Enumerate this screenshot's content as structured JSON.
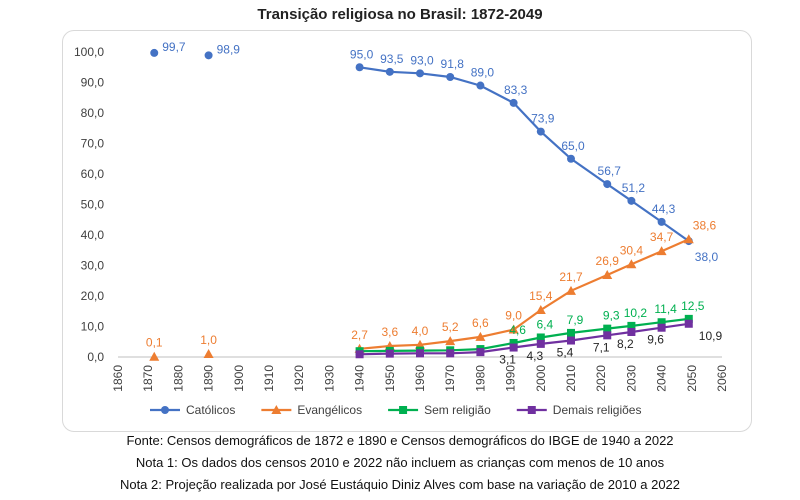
{
  "chart_data": {
    "type": "line",
    "title": "Transição religiosa no Brasil: 1872-2049",
    "xlim": [
      1860,
      2060
    ],
    "ylim": [
      0,
      100
    ],
    "x_ticks": [
      "1860",
      "1870",
      "1880",
      "1890",
      "1900",
      "1910",
      "1920",
      "1930",
      "1940",
      "1950",
      "1960",
      "1970",
      "1980",
      "1990",
      "2000",
      "2010",
      "2020",
      "2030",
      "2040",
      "2050",
      "2060"
    ],
    "y_ticks": [
      "0,0",
      "10,0",
      "20,0",
      "30,0",
      "40,0",
      "50,0",
      "60,0",
      "70,0",
      "80,0",
      "90,0",
      "100,0"
    ],
    "grid": false,
    "legend_position": "bottom",
    "series": [
      {
        "name": "Católicos",
        "color": "#4472c4",
        "marker": "circle",
        "points": [
          {
            "x": 1872,
            "y": 99.7,
            "label": "99,7"
          },
          {
            "x": 1890,
            "y": 98.9,
            "label": "98,9"
          },
          {
            "x": 1940,
            "y": 95.0,
            "label": "95,0"
          },
          {
            "x": 1950,
            "y": 93.5,
            "label": "93,5"
          },
          {
            "x": 1960,
            "y": 93.0,
            "label": "93,0"
          },
          {
            "x": 1970,
            "y": 91.8,
            "label": "91,8"
          },
          {
            "x": 1980,
            "y": 89.0,
            "label": "89,0"
          },
          {
            "x": 1991,
            "y": 83.3,
            "label": "83,3"
          },
          {
            "x": 2000,
            "y": 73.9,
            "label": "73,9"
          },
          {
            "x": 2010,
            "y": 65.0,
            "label": "65,0"
          },
          {
            "x": 2022,
            "y": 56.7,
            "label": "56,7"
          },
          {
            "x": 2030,
            "y": 51.2,
            "label": "51,2"
          },
          {
            "x": 2040,
            "y": 44.3,
            "label": "44,3"
          },
          {
            "x": 2049,
            "y": 38.0,
            "label": "38,0"
          }
        ]
      },
      {
        "name": "Evangélicos",
        "color": "#ed7d31",
        "marker": "triangle",
        "points": [
          {
            "x": 1872,
            "y": 0.1,
            "label": "0,1"
          },
          {
            "x": 1890,
            "y": 1.0,
            "label": "1,0"
          },
          {
            "x": 1940,
            "y": 2.7,
            "label": "2,7"
          },
          {
            "x": 1950,
            "y": 3.6,
            "label": "3,6"
          },
          {
            "x": 1960,
            "y": 4.0,
            "label": "4,0"
          },
          {
            "x": 1970,
            "y": 5.2,
            "label": "5,2"
          },
          {
            "x": 1980,
            "y": 6.6,
            "label": "6,6"
          },
          {
            "x": 1991,
            "y": 9.0,
            "label": "9,0"
          },
          {
            "x": 2000,
            "y": 15.4,
            "label": "15,4"
          },
          {
            "x": 2010,
            "y": 21.7,
            "label": "21,7"
          },
          {
            "x": 2022,
            "y": 26.9,
            "label": "26,9"
          },
          {
            "x": 2030,
            "y": 30.4,
            "label": "30,4"
          },
          {
            "x": 2040,
            "y": 34.7,
            "label": "34,7"
          },
          {
            "x": 2049,
            "y": 38.6,
            "label": "38,6"
          }
        ]
      },
      {
        "name": "Sem religião",
        "color": "#00b050",
        "marker": "square",
        "points": [
          {
            "x": 1940,
            "y": 1.9
          },
          {
            "x": 1950,
            "y": 2.0
          },
          {
            "x": 1960,
            "y": 2.1
          },
          {
            "x": 1970,
            "y": 2.2
          },
          {
            "x": 1980,
            "y": 2.6
          },
          {
            "x": 1991,
            "y": 4.6,
            "label": "4,6"
          },
          {
            "x": 2000,
            "y": 6.4,
            "label": "6,4"
          },
          {
            "x": 2010,
            "y": 7.9,
            "label": "7,9"
          },
          {
            "x": 2022,
            "y": 9.3,
            "label": "9,3"
          },
          {
            "x": 2030,
            "y": 10.2,
            "label": "10,2"
          },
          {
            "x": 2040,
            "y": 11.4,
            "label": "11,4"
          },
          {
            "x": 2049,
            "y": 12.5,
            "label": "12,5"
          }
        ]
      },
      {
        "name": "Demais religiões",
        "color": "#7030a0",
        "marker": "square",
        "points": [
          {
            "x": 1940,
            "y": 0.9
          },
          {
            "x": 1950,
            "y": 1.1
          },
          {
            "x": 1960,
            "y": 1.2
          },
          {
            "x": 1970,
            "y": 1.2
          },
          {
            "x": 1980,
            "y": 1.6
          },
          {
            "x": 1991,
            "y": 3.1,
            "label": "3,1"
          },
          {
            "x": 2000,
            "y": 4.3,
            "label": "4,3"
          },
          {
            "x": 2010,
            "y": 5.4,
            "label": "5,4"
          },
          {
            "x": 2022,
            "y": 7.1,
            "label": "7,1"
          },
          {
            "x": 2030,
            "y": 8.2,
            "label": "8,2"
          },
          {
            "x": 2040,
            "y": 9.6,
            "label": "9,6"
          },
          {
            "x": 2049,
            "y": 10.9,
            "label": "10,9"
          }
        ]
      }
    ]
  },
  "notes": {
    "source": "Fonte: Censos demográficos de 1872 e 1890 e Censos demográficos do IBGE de 1940 a 2022",
    "note1": "Nota 1: Os dados dos censos 2010 e 2022 não incluem as crianças com menos de 10 anos",
    "note2": "Nota 2: Projeção realizada por José Eustáquio Diniz Alves com base na variação de 2010 a 2022"
  }
}
